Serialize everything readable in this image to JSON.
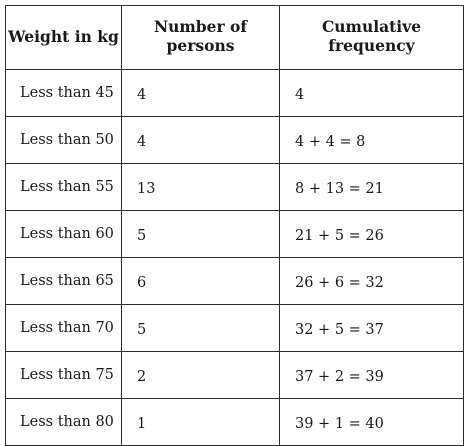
{
  "table": {
    "headers": {
      "weight": "Weight in kg",
      "persons": "Number of persons",
      "cumulative": "Cumulative frequency"
    },
    "rows": [
      {
        "weight": "Less than 45",
        "persons": "4",
        "cumulative": "4"
      },
      {
        "weight": "Less than 50",
        "persons": "4",
        "cumulative": "4 + 4 = 8"
      },
      {
        "weight": "Less than 55",
        "persons": "13",
        "cumulative": "8 + 13 = 21"
      },
      {
        "weight": "Less than 60",
        "persons": "5",
        "cumulative": "21 + 5 = 26"
      },
      {
        "weight": "Less than 65",
        "persons": "6",
        "cumulative": "26 + 6 = 32"
      },
      {
        "weight": "Less than 70",
        "persons": "5",
        "cumulative": "32 + 5 = 37"
      },
      {
        "weight": "Less than 75",
        "persons": "2",
        "cumulative": "37 + 2 = 39"
      },
      {
        "weight": "Less than 80",
        "persons": "1",
        "cumulative": "39 + 1 = 40"
      }
    ]
  }
}
